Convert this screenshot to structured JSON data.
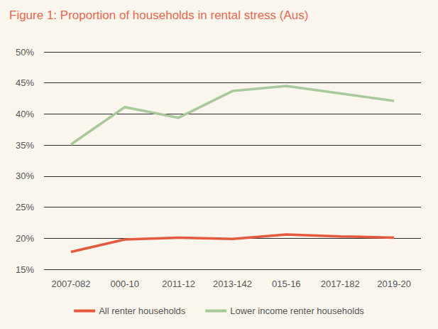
{
  "chart_data": {
    "type": "line",
    "title": "Figure 1: Proportion of households in rental stress (Aus)",
    "categories": [
      "2007-082",
      "000-10",
      "2011-12",
      "2013-142",
      "015-16",
      "2017-182",
      "2019-20"
    ],
    "series": [
      {
        "name": "All renter households",
        "color": "#e55a3e",
        "values": [
          17.8,
          19.8,
          20.1,
          19.9,
          20.6,
          20.3,
          20.1
        ]
      },
      {
        "name": "Lower income renter households",
        "color": "#a8c99a",
        "values": [
          35.1,
          41.1,
          39.4,
          43.7,
          44.5,
          43.3,
          42.1
        ]
      }
    ],
    "ylim": [
      15,
      50
    ],
    "yticks": [
      {
        "value": 15,
        "label": "15%"
      },
      {
        "value": 20,
        "label": "20%"
      },
      {
        "value": 25,
        "label": "25%"
      },
      {
        "value": 30,
        "label": "30%"
      },
      {
        "value": 35,
        "label": "35%"
      },
      {
        "value": 40,
        "label": "40%"
      },
      {
        "value": 45,
        "label": "45%"
      },
      {
        "value": 50,
        "label": "50%"
      }
    ],
    "grid": true,
    "legend": "bottom"
  }
}
